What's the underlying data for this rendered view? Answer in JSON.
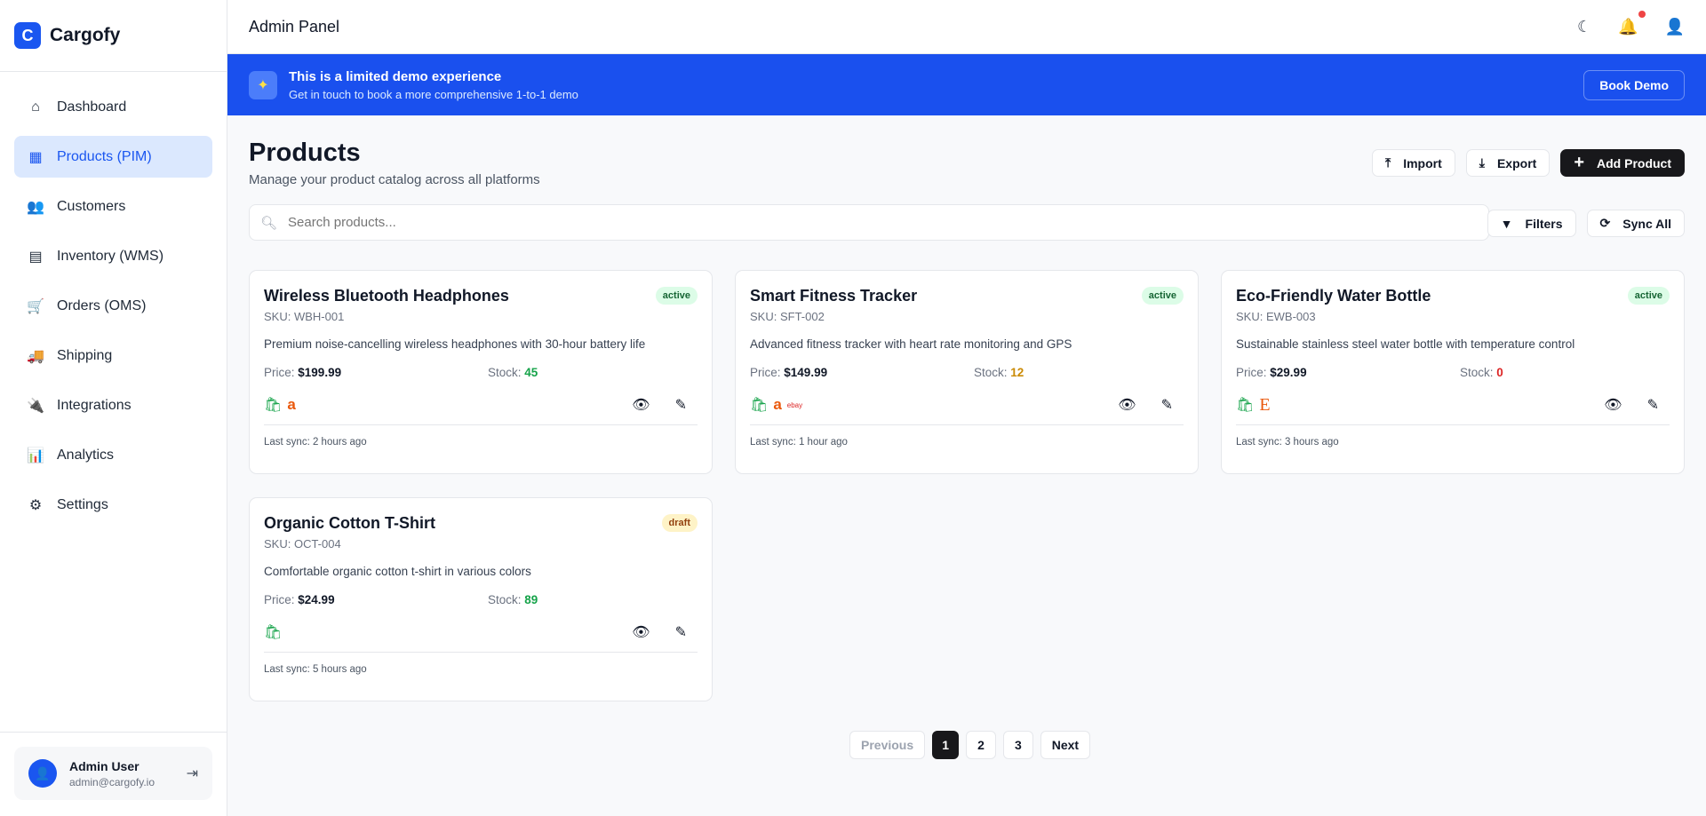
{
  "brand": {
    "logo_letter": "C",
    "name": "Cargofy"
  },
  "sidebar": {
    "items": [
      {
        "label": "Dashboard",
        "icon": "home-icon",
        "glyph": "⌂",
        "active": false
      },
      {
        "label": "Products (PIM)",
        "icon": "boxes-icon",
        "glyph": "▦",
        "active": true
      },
      {
        "label": "Customers",
        "icon": "users-icon",
        "glyph": "👥",
        "active": false
      },
      {
        "label": "Inventory (WMS)",
        "icon": "warehouse-icon",
        "glyph": "▤",
        "active": false
      },
      {
        "label": "Orders (OMS)",
        "icon": "cart-icon",
        "glyph": "🛒",
        "active": false
      },
      {
        "label": "Shipping",
        "icon": "truck-icon",
        "glyph": "🚚",
        "active": false
      },
      {
        "label": "Integrations",
        "icon": "plug-icon",
        "glyph": "🔌",
        "active": false
      },
      {
        "label": "Analytics",
        "icon": "chart-icon",
        "glyph": "📊",
        "active": false
      },
      {
        "label": "Settings",
        "icon": "gear-icon",
        "glyph": "⚙",
        "active": false
      }
    ]
  },
  "user": {
    "name": "Admin User",
    "email": "admin@cargofy.io"
  },
  "header": {
    "title": "Admin Panel"
  },
  "banner": {
    "title": "This is a limited demo experience",
    "subtitle": "Get in touch to book a more comprehensive 1-to-1 demo",
    "button": "Book Demo"
  },
  "page": {
    "title": "Products",
    "subtitle": "Manage your product catalog across all platforms",
    "import": "Import",
    "export": "Export",
    "add": "Add Product",
    "search_placeholder": "Search products...",
    "filters": "Filters",
    "sync_all": "Sync All"
  },
  "products": [
    {
      "name": "Wireless Bluetooth Headphones",
      "status": "active",
      "sku": "SKU: WBH-001",
      "description": "Premium noise-cancelling wireless headphones with 30-hour battery life",
      "price_label": "Price:",
      "price": "$199.99",
      "stock_label": "Stock:",
      "stock": "45",
      "stock_color": "#16a34a",
      "platforms": [
        "shopify",
        "amazon"
      ],
      "last_sync": "Last sync: 2 hours ago"
    },
    {
      "name": "Smart Fitness Tracker",
      "status": "active",
      "sku": "SKU: SFT-002",
      "description": "Advanced fitness tracker with heart rate monitoring and GPS",
      "price_label": "Price:",
      "price": "$149.99",
      "stock_label": "Stock:",
      "stock": "12",
      "stock_color": "#ca8a04",
      "platforms": [
        "shopify",
        "amazon",
        "ebay"
      ],
      "last_sync": "Last sync: 1 hour ago"
    },
    {
      "name": "Eco-Friendly Water Bottle",
      "status": "active",
      "sku": "SKU: EWB-003",
      "description": "Sustainable stainless steel water bottle with temperature control",
      "price_label": "Price:",
      "price": "$29.99",
      "stock_label": "Stock:",
      "stock": "0",
      "stock_color": "#dc2626",
      "platforms": [
        "shopify",
        "etsy"
      ],
      "last_sync": "Last sync: 3 hours ago"
    },
    {
      "name": "Organic Cotton T-Shirt",
      "status": "draft",
      "sku": "SKU: OCT-004",
      "description": "Comfortable organic cotton t-shirt in various colors",
      "price_label": "Price:",
      "price": "$24.99",
      "stock_label": "Stock:",
      "stock": "89",
      "stock_color": "#16a34a",
      "platforms": [
        "shopify"
      ],
      "last_sync": "Last sync: 5 hours ago"
    }
  ],
  "pagination": {
    "previous": "Previous",
    "pages": [
      "1",
      "2",
      "3"
    ],
    "current": "1",
    "next": "Next"
  },
  "colors": {
    "accent": "#1a56f0",
    "banner": "#1a50ee",
    "dark_button": "#18181b"
  }
}
